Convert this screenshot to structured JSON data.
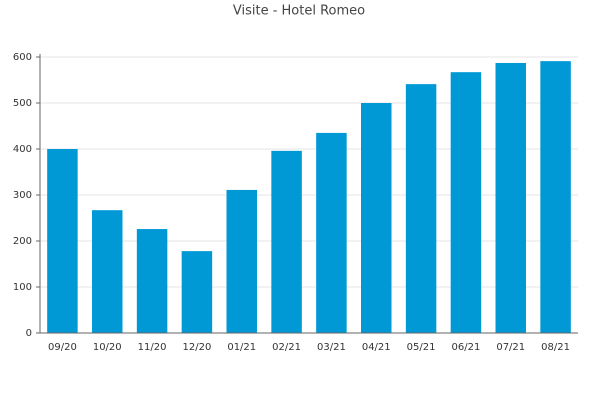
{
  "chart_data": {
    "type": "bar",
    "title": "Visite - Hotel Romeo",
    "categories": [
      "09/20",
      "10/20",
      "11/20",
      "12/20",
      "01/21",
      "02/21",
      "03/21",
      "04/21",
      "05/21",
      "06/21",
      "07/21",
      "08/21"
    ],
    "values": [
      400,
      267,
      226,
      178,
      311,
      396,
      435,
      500,
      541,
      567,
      587,
      591
    ],
    "color": "#0099d6",
    "ylim": [
      0,
      600
    ],
    "yticks": [
      0,
      100,
      200,
      300,
      400,
      500,
      600
    ],
    "grid": true
  }
}
